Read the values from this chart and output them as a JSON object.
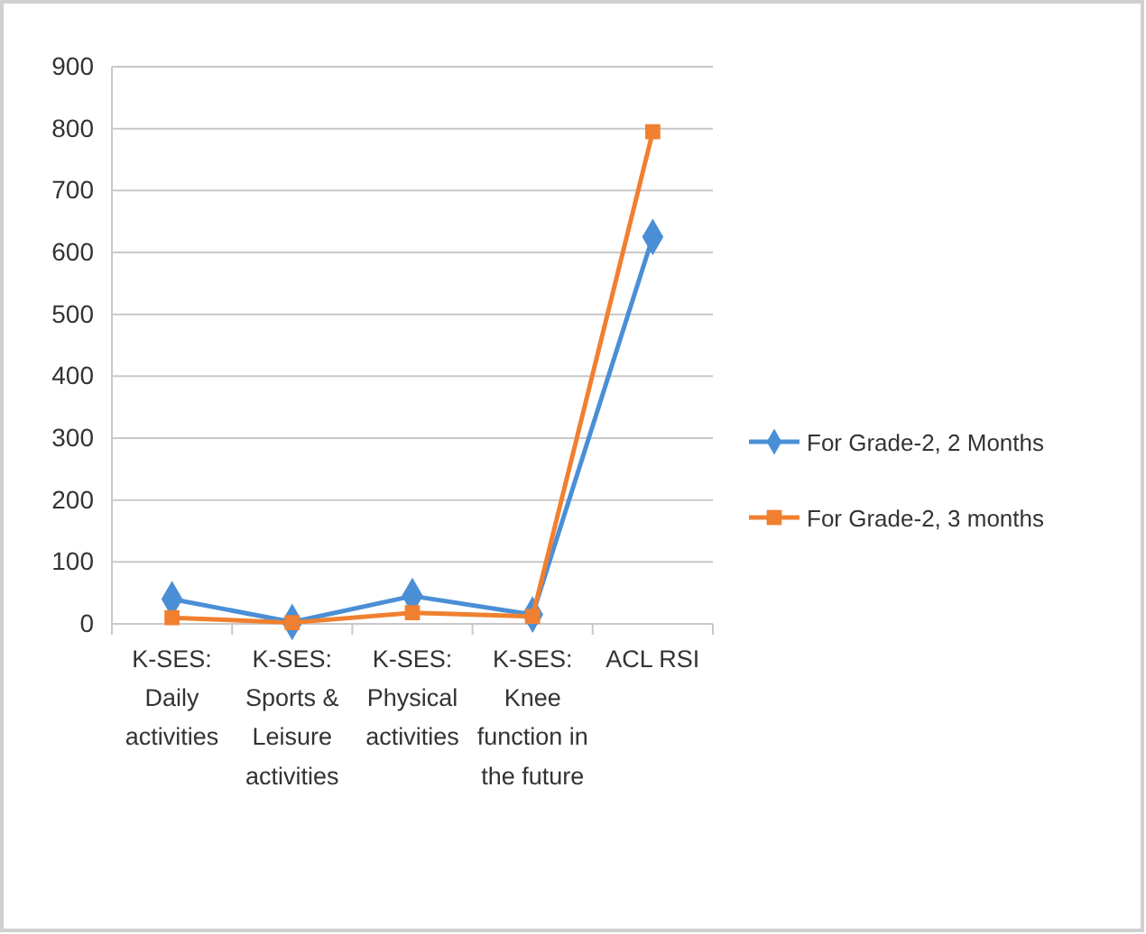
{
  "chart_data": {
    "type": "line",
    "categories": [
      "K-SES: Daily activities",
      "K-SES: Sports & Leisure activities",
      "K-SES: Physical activities",
      "K-SES: Knee function in the future",
      "ACL RSI"
    ],
    "series": [
      {
        "name": "For Grade-2, 2 Months",
        "color": "#4a8fd6",
        "marker": "diamond",
        "values": [
          40,
          3,
          45,
          15,
          625
        ]
      },
      {
        "name": "For Grade-2, 3 months",
        "color": "#f08030",
        "marker": "square",
        "values": [
          10,
          2,
          18,
          12,
          795
        ]
      }
    ],
    "ylim": [
      0,
      900
    ],
    "yticks": [
      0,
      100,
      200,
      300,
      400,
      500,
      600,
      700,
      800,
      900
    ],
    "grid": "y",
    "legend": "right"
  }
}
